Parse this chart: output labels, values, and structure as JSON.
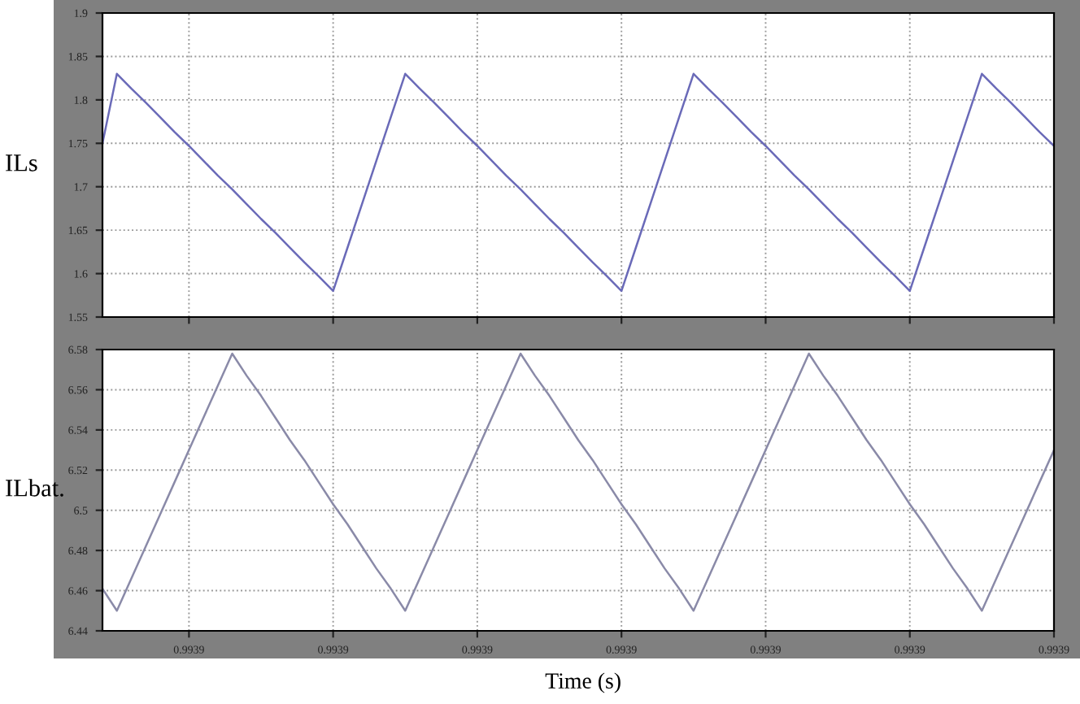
{
  "chart_data": [
    {
      "type": "line",
      "ylabel": "ILs",
      "categories": [
        null,
        null,
        null,
        null,
        null,
        null,
        null,
        null,
        null,
        null,
        null,
        null,
        null,
        null,
        null,
        null,
        null,
        null,
        null,
        null,
        null,
        null,
        null,
        null,
        null,
        null,
        null,
        null,
        null,
        null,
        null,
        null,
        null,
        null,
        null,
        null,
        null,
        null,
        null,
        null,
        null,
        null,
        null,
        null,
        null,
        null,
        null,
        null,
        null,
        null,
        null,
        null,
        null,
        null,
        null,
        null,
        null,
        null,
        null,
        null,
        null,
        null,
        null,
        null,
        null,
        null,
        null
      ],
      "series": [
        {
          "color": "#6a6ab8",
          "values": [
            1.75,
            1.83,
            1.813,
            1.797,
            1.78,
            1.763,
            1.747,
            1.73,
            1.713,
            1.697,
            1.68,
            1.663,
            1.647,
            1.63,
            1.613,
            1.597,
            1.58,
            1.63,
            1.68,
            1.73,
            1.78,
            1.83,
            1.813,
            1.797,
            1.78,
            1.763,
            1.747,
            1.73,
            1.713,
            1.697,
            1.68,
            1.663,
            1.647,
            1.63,
            1.613,
            1.597,
            1.58,
            1.63,
            1.68,
            1.73,
            1.78,
            1.83,
            1.813,
            1.797,
            1.78,
            1.763,
            1.747,
            1.73,
            1.713,
            1.697,
            1.68,
            1.663,
            1.647,
            1.63,
            1.613,
            1.597,
            1.58,
            1.63,
            1.68,
            1.73,
            1.78,
            1.83,
            1.813,
            1.797,
            1.78,
            1.763,
            1.747
          ]
        }
      ],
      "ylim": [
        1.55,
        1.9
      ],
      "yticks": [
        1.55,
        1.6,
        1.65,
        1.7,
        1.75,
        1.8,
        1.85,
        1.9
      ],
      "grid": true,
      "tick_labels": "y"
    },
    {
      "type": "line",
      "ylabel": "ILbat.",
      "xlabel": "Time (s)",
      "categories": [
        null,
        null,
        null,
        null,
        null,
        null,
        "0.9939",
        null,
        null,
        null,
        null,
        null,
        null,
        null,
        null,
        null,
        "0.9939",
        null,
        null,
        null,
        null,
        null,
        null,
        null,
        null,
        null,
        "0.9939",
        null,
        null,
        null,
        null,
        null,
        null,
        null,
        null,
        null,
        "0.9939",
        null,
        null,
        null,
        null,
        null,
        null,
        null,
        null,
        null,
        "0.9939",
        null,
        null,
        null,
        null,
        null,
        null,
        null,
        null,
        null,
        "0.9939",
        null,
        null,
        null,
        null,
        null,
        null,
        null,
        null,
        null,
        "0.9939"
      ],
      "series": [
        {
          "color": "#8a8aa8",
          "values": [
            6.461,
            6.45,
            6.466,
            6.482,
            6.498,
            6.514,
            6.53,
            6.546,
            6.562,
            6.578,
            6.567,
            6.557,
            6.546,
            6.535,
            6.525,
            6.514,
            6.503,
            6.493,
            6.482,
            6.471,
            6.461,
            6.45,
            6.466,
            6.482,
            6.498,
            6.514,
            6.53,
            6.546,
            6.562,
            6.578,
            6.567,
            6.557,
            6.546,
            6.535,
            6.525,
            6.514,
            6.503,
            6.493,
            6.482,
            6.471,
            6.461,
            6.45,
            6.466,
            6.482,
            6.498,
            6.514,
            6.53,
            6.546,
            6.562,
            6.578,
            6.567,
            6.557,
            6.546,
            6.535,
            6.525,
            6.514,
            6.503,
            6.493,
            6.482,
            6.471,
            6.461,
            6.45,
            6.466,
            6.482,
            6.498,
            6.514,
            6.53
          ]
        }
      ],
      "ylim": [
        6.44,
        6.58
      ],
      "yticks": [
        6.44,
        6.46,
        6.48,
        6.5,
        6.52,
        6.54,
        6.56,
        6.58
      ],
      "grid": true
    }
  ]
}
